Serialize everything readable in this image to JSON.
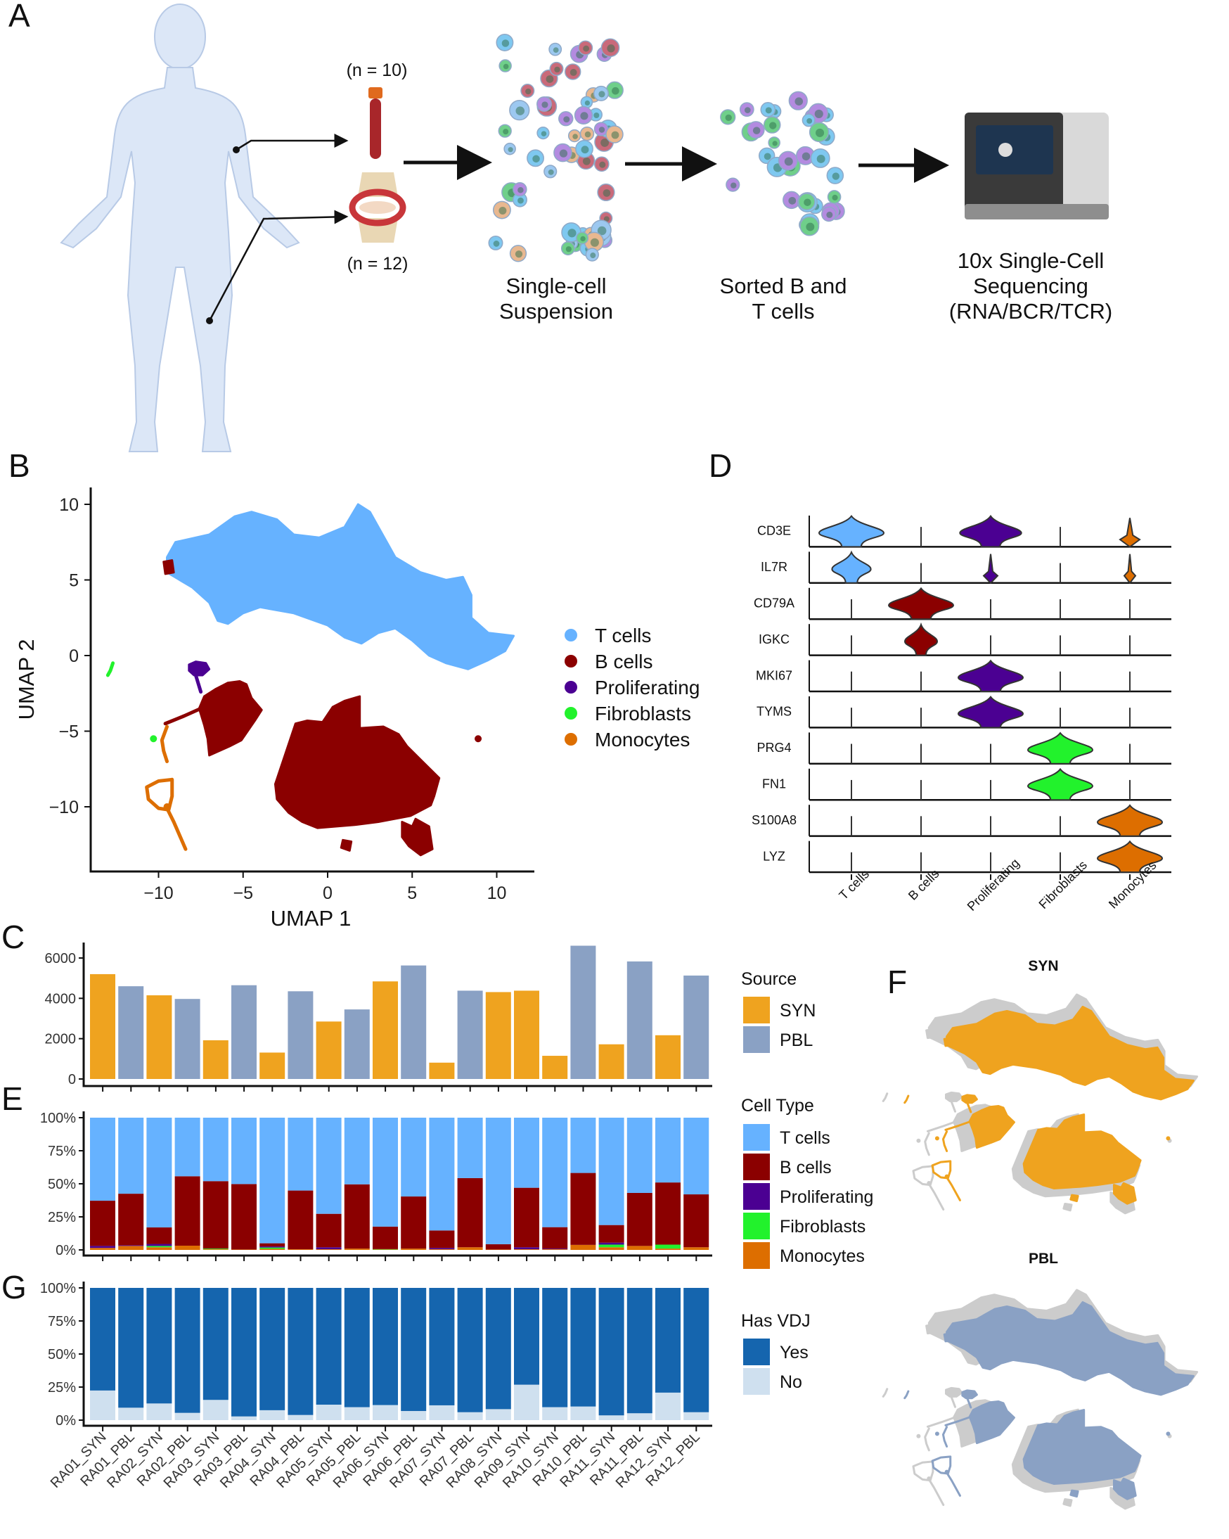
{
  "panel_letters": {
    "a": "A",
    "b": "B",
    "c": "C",
    "d": "D",
    "e": "E",
    "f": "F",
    "g": "G"
  },
  "panel_a": {
    "n_blood": "(n = 10)",
    "n_joint": "(n = 12)",
    "step1": [
      "Single-cell",
      "Suspension"
    ],
    "step2": [
      "Sorted B and",
      "T cells"
    ],
    "step3": [
      "10x Single-Cell",
      "Sequencing",
      "(RNA/BCR/TCR)"
    ],
    "icons": [
      "human-body-icon",
      "blood-tube-icon",
      "knee-joint-icon",
      "cell-suspension-icon",
      "sorted-cells-icon",
      "sequencer-icon"
    ]
  },
  "colors": {
    "T cells": "#66B2FF",
    "B cells": "#8B0000",
    "Proliferating": "#4B0092",
    "Fibroblasts": "#22F22C",
    "Monocytes": "#DD6E00",
    "SYN": "#EFA31F",
    "PBL": "#8AA1C4",
    "Yes": "#1565AE",
    "No": "#CFE0EF",
    "background_cells": "#CCCCCC"
  },
  "chart_data": [
    {
      "type": "scatter",
      "panel": "B",
      "xlabel": "UMAP 1",
      "ylabel": "UMAP 2",
      "xticks": [
        -10,
        -5,
        0,
        5,
        10
      ],
      "yticks": [
        10,
        5,
        0,
        -5,
        -10
      ],
      "xtick_labels": [
        "−10",
        "−5",
        "0",
        "5",
        "10"
      ],
      "ytick_labels": [
        "10",
        "5",
        "0",
        "−5",
        "−10"
      ],
      "xlim": [
        -14,
        12.5
      ],
      "ylim": [
        -14,
        11
      ],
      "legend": [
        "T cells",
        "B cells",
        "Proliferating",
        "Fibroblasts",
        "Monocytes"
      ],
      "legend_position": "right",
      "regions": [
        {
          "type": "T cells",
          "shape": "polygon",
          "points": [
            [
              -9.5,
              6.5
            ],
            [
              -9,
              7.5
            ],
            [
              -7,
              8
            ],
            [
              -5.5,
              9.2
            ],
            [
              -4.5,
              9.5
            ],
            [
              -3,
              9
            ],
            [
              -2,
              8
            ],
            [
              -0.5,
              7.8
            ],
            [
              1,
              8.5
            ],
            [
              1.8,
              10
            ],
            [
              2.5,
              9.5
            ],
            [
              3.5,
              7.5
            ],
            [
              4,
              6.5
            ],
            [
              5.5,
              5.5
            ],
            [
              7,
              5
            ],
            [
              8,
              5.2
            ],
            [
              8.5,
              4
            ],
            [
              8.5,
              2.5
            ],
            [
              9.5,
              1.5
            ],
            [
              11,
              1.3
            ],
            [
              10.5,
              0.3
            ],
            [
              9.5,
              -0.3
            ],
            [
              8.3,
              -0.9
            ],
            [
              7,
              -0.5
            ],
            [
              6,
              0
            ],
            [
              5,
              1
            ],
            [
              4,
              1.8
            ],
            [
              3,
              1.5
            ],
            [
              2,
              0.8
            ],
            [
              1,
              1.2
            ],
            [
              0,
              2
            ],
            [
              -2,
              2.8
            ],
            [
              -4,
              3.2
            ],
            [
              -5,
              2.8
            ],
            [
              -5.9,
              2.1
            ],
            [
              -6.5,
              2.3
            ],
            [
              -7,
              3.5
            ],
            [
              -8,
              4.5
            ],
            [
              -9.5,
              5.5
            ]
          ]
        },
        {
          "type": "B cells",
          "shape": "polygon",
          "points": [
            [
              -3.1,
              -8.5
            ],
            [
              -2.5,
              -6.5
            ],
            [
              -1.9,
              -4.5
            ],
            [
              -1.2,
              -4.3
            ],
            [
              -0.3,
              -4.4
            ],
            [
              0.3,
              -3.4
            ],
            [
              1,
              -3
            ],
            [
              1.9,
              -2.7
            ],
            [
              1.9,
              -4.8
            ],
            [
              3.3,
              -4.7
            ],
            [
              4.2,
              -5.2
            ],
            [
              4.7,
              -6
            ],
            [
              5.6,
              -7
            ],
            [
              6.6,
              -8.1
            ],
            [
              6.3,
              -9.3
            ],
            [
              6.1,
              -9.9
            ],
            [
              4.9,
              -10.6
            ],
            [
              3,
              -11
            ],
            [
              1.6,
              -11.2
            ],
            [
              -0.6,
              -11.4
            ],
            [
              -1.5,
              -11
            ],
            [
              -2.3,
              -10.4
            ],
            [
              -3,
              -9.5
            ]
          ]
        },
        {
          "type": "B cells",
          "shape": "polygon",
          "points": [
            [
              4.4,
              -11
            ],
            [
              5,
              -11.3
            ],
            [
              5.2,
              -10.8
            ],
            [
              6,
              -11.3
            ],
            [
              6.2,
              -12.8
            ],
            [
              5.5,
              -13.2
            ],
            [
              4.8,
              -12.6
            ],
            [
              4.4,
              -12
            ]
          ]
        },
        {
          "type": "B cells",
          "shape": "polygon",
          "points": [
            [
              0.9,
              -12.2
            ],
            [
              1.4,
              -12.3
            ],
            [
              1.3,
              -12.9
            ],
            [
              0.8,
              -12.7
            ]
          ]
        },
        {
          "type": "B cells",
          "shape": "polygon",
          "points": [
            [
              -7.3,
              -2.7
            ],
            [
              -6.6,
              -2.2
            ],
            [
              -5.9,
              -1.8
            ],
            [
              -5.2,
              -1.7
            ],
            [
              -4.8,
              -1.9
            ],
            [
              -4.5,
              -2.8
            ],
            [
              -3.9,
              -3.6
            ],
            [
              -4.3,
              -4.3
            ],
            [
              -5.1,
              -5.6
            ],
            [
              -5.8,
              -6
            ],
            [
              -7,
              -6.6
            ],
            [
              -7.1,
              -5.5
            ],
            [
              -7.3,
              -4.6
            ],
            [
              -7.6,
              -3.5
            ]
          ]
        },
        {
          "type": "B cells",
          "shape": "line",
          "points": [
            [
              -9.6,
              -4.5
            ],
            [
              -8.5,
              -4
            ],
            [
              -7.5,
              -3.5
            ]
          ]
        },
        {
          "type": "B cells",
          "shape": "polygon",
          "points": [
            [
              -9.7,
              6.2
            ],
            [
              -9.2,
              6.3
            ],
            [
              -9.1,
              5.5
            ],
            [
              -9.6,
              5.4
            ]
          ]
        },
        {
          "type": "B cells",
          "shape": "dot",
          "points": [
            [
              8.9,
              -5.5
            ]
          ]
        },
        {
          "type": "Proliferating",
          "shape": "polygon",
          "points": [
            [
              -8.2,
              -0.6
            ],
            [
              -7.8,
              -0.4
            ],
            [
              -7.2,
              -0.5
            ],
            [
              -7,
              -0.9
            ],
            [
              -7.4,
              -1.3
            ],
            [
              -7.9,
              -1.3
            ],
            [
              -8.2,
              -1
            ]
          ]
        },
        {
          "type": "Proliferating",
          "shape": "line",
          "points": [
            [
              -7.8,
              -1.3
            ],
            [
              -7.5,
              -2.4
            ]
          ]
        },
        {
          "type": "Fibroblasts",
          "shape": "line",
          "points": [
            [
              -12.7,
              -0.5
            ],
            [
              -12.85,
              -1
            ],
            [
              -13,
              -1.3
            ]
          ]
        },
        {
          "type": "Fibroblasts",
          "shape": "dot",
          "points": [
            [
              -10.3,
              -5.5
            ]
          ]
        },
        {
          "type": "Monocytes",
          "shape": "line",
          "points": [
            [
              -9.2,
              -8.2
            ],
            [
              -10,
              -8.3
            ],
            [
              -10.7,
              -8.7
            ],
            [
              -10.6,
              -9.5
            ],
            [
              -10,
              -10.1
            ],
            [
              -9.4,
              -10.2
            ],
            [
              -9.2,
              -9.3
            ],
            [
              -9.2,
              -8.2
            ]
          ]
        },
        {
          "type": "Monocytes",
          "shape": "line",
          "points": [
            [
              -9.5,
              -10.1
            ],
            [
              -9.1,
              -11
            ],
            [
              -8.4,
              -12.8
            ]
          ]
        },
        {
          "type": "Monocytes",
          "shape": "line",
          "points": [
            [
              -9.5,
              -4.7
            ],
            [
              -9.8,
              -5.6
            ],
            [
              -9.7,
              -6.3
            ],
            [
              -9.5,
              -7
            ]
          ]
        },
        {
          "type": "Monocytes",
          "shape": "dot",
          "points": [
            [
              -9.5,
              -10
            ]
          ]
        }
      ]
    },
    {
      "type": "violin",
      "panel": "D",
      "genes": [
        "CD3E",
        "IL7R",
        "CD79A",
        "IGKC",
        "MKI67",
        "TYMS",
        "PRG4",
        "FN1",
        "S100A8",
        "LYZ"
      ],
      "cell_types": [
        "T cells",
        "B cells",
        "Proliferating",
        "Fibroblasts",
        "Monocytes"
      ],
      "expression_level": [
        [
          1,
          0,
          0.95,
          0,
          0.25
        ],
        [
          0.6,
          0,
          0.15,
          0,
          0.1
        ],
        [
          0,
          1,
          0,
          0,
          0
        ],
        [
          0,
          0.5,
          0,
          0,
          0
        ],
        [
          0,
          0,
          1,
          0,
          0
        ],
        [
          0,
          0,
          1,
          0.05,
          0
        ],
        [
          0,
          0,
          0,
          1,
          0
        ],
        [
          0,
          0,
          0,
          1,
          0
        ],
        [
          0,
          0,
          0,
          0,
          1
        ],
        [
          0,
          0,
          0,
          0,
          1
        ]
      ]
    },
    {
      "type": "bar",
      "panel": "C",
      "categories": [
        "RA01_SYN",
        "RA01_PBL",
        "RA02_SYN",
        "RA02_PBL",
        "RA03_SYN",
        "RA03_PBL",
        "RA04_SYN",
        "RA04_PBL",
        "RA05_SYN",
        "RA05_PBL",
        "RA06_SYN",
        "RA06_PBL",
        "RA07_SYN",
        "RA07_PBL",
        "RA08_SYN",
        "RA09_SYN",
        "RA10_SYN",
        "RA10_PBL",
        "RA11_SYN",
        "RA11_PBL",
        "RA12_SYN",
        "RA12_PBL"
      ],
      "source": [
        "SYN",
        "PBL",
        "SYN",
        "PBL",
        "SYN",
        "PBL",
        "SYN",
        "PBL",
        "SYN",
        "PBL",
        "SYN",
        "PBL",
        "SYN",
        "PBL",
        "SYN",
        "SYN",
        "SYN",
        "PBL",
        "SYN",
        "PBL",
        "SYN",
        "PBL"
      ],
      "values": [
        5200,
        4600,
        4150,
        3970,
        1920,
        4650,
        1310,
        4350,
        2850,
        3450,
        4840,
        5630,
        810,
        4380,
        4310,
        4380,
        1150,
        6610,
        1720,
        5830,
        2170,
        5130
      ],
      "yticks": [
        0,
        2000,
        4000,
        6000
      ],
      "ylim": [
        0,
        6800
      ],
      "legend_title": "Source",
      "legend": [
        "SYN",
        "PBL"
      ]
    },
    {
      "type": "bar",
      "stacked": true,
      "panel": "E",
      "categories": [
        "RA01_SYN",
        "RA01_PBL",
        "RA02_SYN",
        "RA02_PBL",
        "RA03_SYN",
        "RA03_PBL",
        "RA04_SYN",
        "RA04_PBL",
        "RA05_SYN",
        "RA05_PBL",
        "RA06_SYN",
        "RA06_PBL",
        "RA07_SYN",
        "RA07_PBL",
        "RA08_SYN",
        "RA09_SYN",
        "RA10_SYN",
        "RA10_PBL",
        "RA11_SYN",
        "RA11_PBL",
        "RA12_SYN",
        "RA12_PBL"
      ],
      "series": [
        {
          "name": "Monocytes",
          "values": [
            1.5,
            3,
            2,
            3.2,
            0.5,
            0.3,
            0.8,
            0.5,
            0.5,
            1,
            0.3,
            1,
            0.5,
            2,
            0.3,
            0.5,
            0.5,
            3.8,
            2,
            3,
            1,
            2
          ]
        },
        {
          "name": "Fibroblasts",
          "values": [
            0,
            0,
            1,
            0,
            0.5,
            0,
            1,
            0,
            0,
            0,
            0.3,
            0,
            0,
            0,
            0,
            0,
            0,
            0,
            2,
            0,
            3,
            0
          ]
        },
        {
          "name": "Proliferating",
          "values": [
            1.5,
            0.5,
            1.5,
            0,
            0,
            0,
            0.8,
            0,
            1.5,
            0,
            0,
            0,
            1,
            0,
            0,
            1.5,
            0.5,
            0,
            1.5,
            0,
            0,
            0
          ]
        },
        {
          "name": "B cells",
          "values": [
            34.2,
            39,
            12.5,
            52.5,
            51,
            49.5,
            2.4,
            44.4,
            25.3,
            48.6,
            17,
            39.4,
            13.2,
            52.3,
            4,
            45,
            16.2,
            54.4,
            13.3,
            40.1,
            47,
            40
          ]
        },
        {
          "name": "T cells",
          "values": [
            62.8,
            57.5,
            83,
            44.3,
            48,
            50.2,
            95,
            55.1,
            72.7,
            50.4,
            82.4,
            59.6,
            85.3,
            45.7,
            95.7,
            53,
            82.8,
            41.8,
            81.2,
            56.9,
            49,
            58
          ]
        }
      ],
      "ytick_labels": [
        "0%",
        "25%",
        "50%",
        "75%",
        "100%"
      ],
      "ylim": [
        0,
        100
      ],
      "legend_title": "Cell Type",
      "legend": [
        "T cells",
        "B cells",
        "Proliferating",
        "Fibroblasts",
        "Monocytes"
      ]
    },
    {
      "type": "bar",
      "stacked": true,
      "panel": "G",
      "categories": [
        "RA01_SYN",
        "RA01_PBL",
        "RA02_SYN",
        "RA02_PBL",
        "RA03_SYN",
        "RA03_PBL",
        "RA04_SYN",
        "RA04_PBL",
        "RA05_SYN",
        "RA05_PBL",
        "RA06_SYN",
        "RA06_PBL",
        "RA07_SYN",
        "RA07_PBL",
        "RA08_SYN",
        "RA09_SYN",
        "RA10_SYN",
        "RA10_PBL",
        "RA11_SYN",
        "RA11_PBL",
        "RA12_SYN",
        "RA12_PBL"
      ],
      "series": [
        {
          "name": "No",
          "values": [
            22.4,
            9.4,
            12.6,
            5.5,
            15.3,
            2.8,
            7.5,
            3.9,
            11.7,
            9.8,
            11.4,
            6.9,
            11.2,
            6,
            8.3,
            26.8,
            9.8,
            10.3,
            3.6,
            5.2,
            20.8,
            6
          ]
        },
        {
          "name": "Yes",
          "values": [
            77.6,
            90.6,
            87.4,
            94.5,
            84.7,
            97.2,
            92.5,
            96.1,
            88.3,
            90.2,
            88.6,
            93.1,
            88.8,
            94,
            91.7,
            73.2,
            90.2,
            89.7,
            96.4,
            94.8,
            79.2,
            94
          ]
        }
      ],
      "ytick_labels": [
        "0%",
        "25%",
        "50%",
        "75%",
        "100%"
      ],
      "ylim": [
        0,
        100
      ],
      "legend_title": "Has VDJ",
      "legend": [
        "Yes",
        "No"
      ]
    },
    {
      "type": "scatter",
      "panel": "F",
      "facets": [
        "SYN",
        "PBL"
      ]
    }
  ]
}
